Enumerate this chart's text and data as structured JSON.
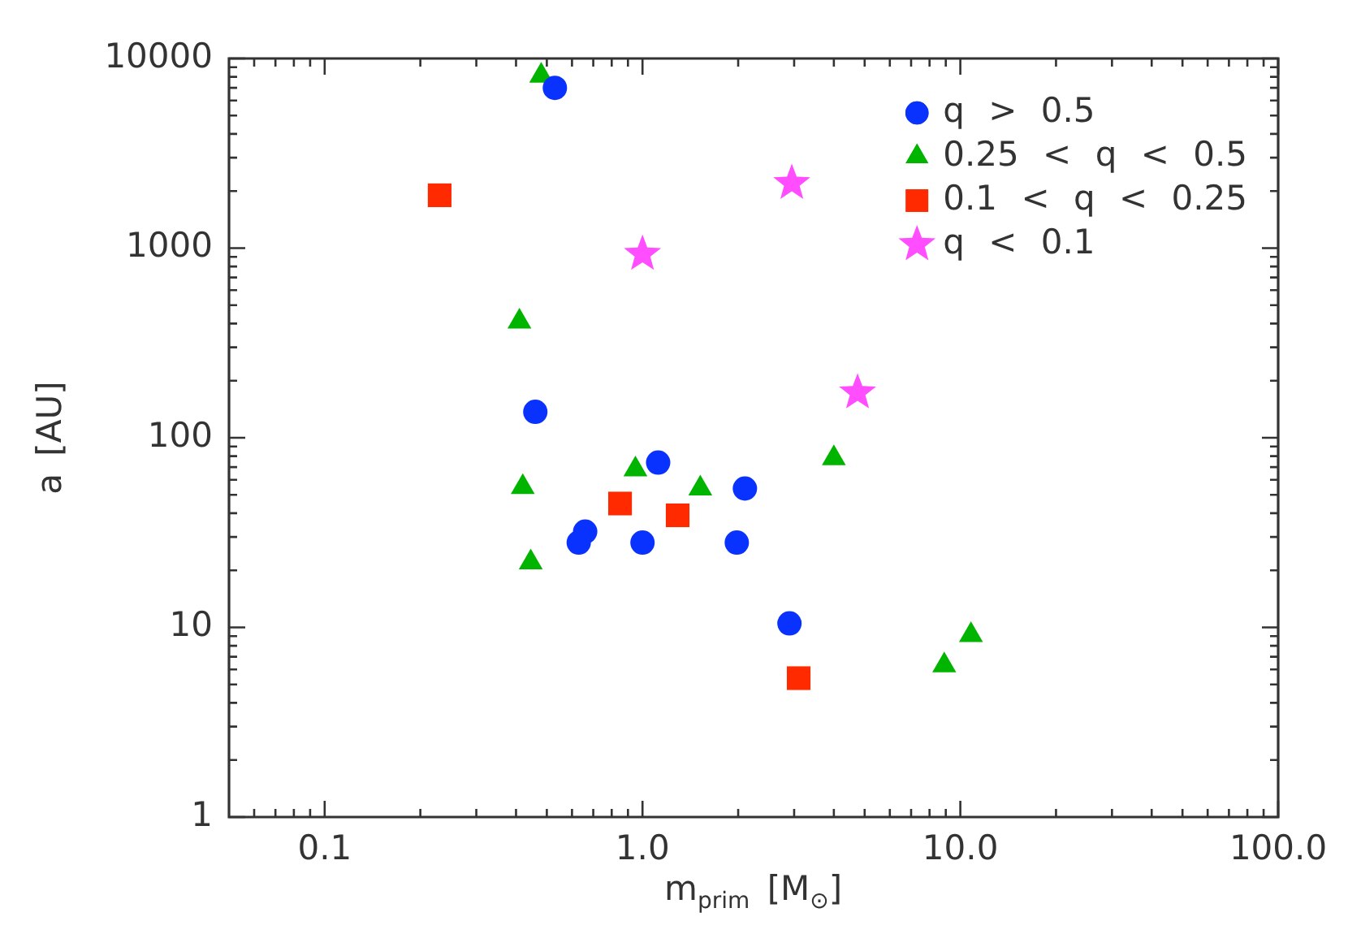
{
  "chart_data": {
    "type": "scatter",
    "xlabel": "m$_{prim}$ [M$_{⊙}$]",
    "ylabel": "a [AU]",
    "log": "xy",
    "grid": false,
    "legend": "top right",
    "xlim": [
      0.05,
      100
    ],
    "xticks": [
      {
        "value": 0.06,
        "label": null
      },
      {
        "value": 0.07,
        "label": null
      },
      {
        "value": 0.08,
        "label": null
      },
      {
        "value": 0.09,
        "label": null
      },
      {
        "value": 0.1,
        "label": "0.1"
      },
      {
        "value": 0.2,
        "label": null
      },
      {
        "value": 0.3,
        "label": null
      },
      {
        "value": 0.4,
        "label": null
      },
      {
        "value": 0.5,
        "label": null
      },
      {
        "value": 0.6,
        "label": null
      },
      {
        "value": 0.7,
        "label": null
      },
      {
        "value": 0.8,
        "label": null
      },
      {
        "value": 0.9,
        "label": null
      },
      {
        "value": 1,
        "label": "1.0"
      },
      {
        "value": 2,
        "label": null
      },
      {
        "value": 3,
        "label": null
      },
      {
        "value": 4,
        "label": null
      },
      {
        "value": 5,
        "label": null
      },
      {
        "value": 6,
        "label": null
      },
      {
        "value": 7,
        "label": null
      },
      {
        "value": 8,
        "label": null
      },
      {
        "value": 9,
        "label": null
      },
      {
        "value": 10,
        "label": "10.0"
      },
      {
        "value": 20,
        "label": null
      },
      {
        "value": 30,
        "label": null
      },
      {
        "value": 40,
        "label": null
      },
      {
        "value": 50,
        "label": null
      },
      {
        "value": 60,
        "label": null
      },
      {
        "value": 70,
        "label": null
      },
      {
        "value": 80,
        "label": null
      },
      {
        "value": 90,
        "label": null
      },
      {
        "value": 100,
        "label": "100.0"
      }
    ],
    "ylim": [
      1,
      10000
    ],
    "yticks": [
      1,
      {
        "value": 2,
        "label": null
      },
      {
        "value": 3,
        "label": null
      },
      {
        "value": 4,
        "label": null
      },
      {
        "value": 5,
        "label": null
      },
      {
        "value": 6,
        "label": null
      },
      {
        "value": 7,
        "label": null
      },
      {
        "value": 8,
        "label": null
      },
      {
        "value": 9,
        "label": null
      },
      10,
      {
        "value": 20,
        "label": null
      },
      {
        "value": 30,
        "label": null
      },
      {
        "value": 40,
        "label": null
      },
      {
        "value": 50,
        "label": null
      },
      {
        "value": 60,
        "label": null
      },
      {
        "value": 70,
        "label": null
      },
      {
        "value": 80,
        "label": null
      },
      {
        "value": 90,
        "label": null
      },
      100,
      {
        "value": 200,
        "label": null
      },
      {
        "value": 300,
        "label": null
      },
      {
        "value": 400,
        "label": null
      },
      {
        "value": 500,
        "label": null
      },
      {
        "value": 600,
        "label": null
      },
      {
        "value": 700,
        "label": null
      },
      {
        "value": 800,
        "label": null
      },
      {
        "value": 900,
        "label": null
      },
      1000,
      {
        "value": 2000,
        "label": null
      },
      {
        "value": 3000,
        "label": null
      },
      {
        "value": 4000,
        "label": null
      },
      {
        "value": 5000,
        "label": null
      },
      {
        "value": 6000,
        "label": null
      },
      {
        "value": 7000,
        "label": null
      },
      {
        "value": 8000,
        "label": null
      },
      {
        "value": 9000,
        "label": null
      },
      10000
    ],
    "series": [
      {
        "name": "q > 0.5",
        "color": "#0a32ff",
        "marker": "circle",
        "x": [
          0.53,
          0.46,
          1.12,
          2.1,
          0.66,
          0.63,
          1.0,
          1.98,
          2.9
        ],
        "values": [
          7000,
          137,
          74,
          54,
          32,
          28,
          28,
          28,
          10.5
        ]
      },
      {
        "name": "0.25 < q < 0.5",
        "color": "#00b400",
        "marker": "triangle",
        "x": [
          0.48,
          0.41,
          0.42,
          0.95,
          1.52,
          0.445,
          4.0,
          8.9,
          10.8
        ],
        "values": [
          8100,
          410,
          55,
          68,
          54,
          22,
          78,
          6.3,
          9.1
        ]
      },
      {
        "name": "0.1 < q < 0.25",
        "color": "#ff2a00",
        "marker": "square",
        "x": [
          0.23,
          0.85,
          1.29,
          3.1
        ],
        "values": [
          1900,
          45,
          39,
          5.4
        ]
      },
      {
        "name": "q < 0.1",
        "color": "#ff4dff",
        "marker": "star",
        "x": [
          1.0,
          2.95,
          4.75
        ],
        "values": [
          930,
          2200,
          173
        ]
      }
    ]
  }
}
